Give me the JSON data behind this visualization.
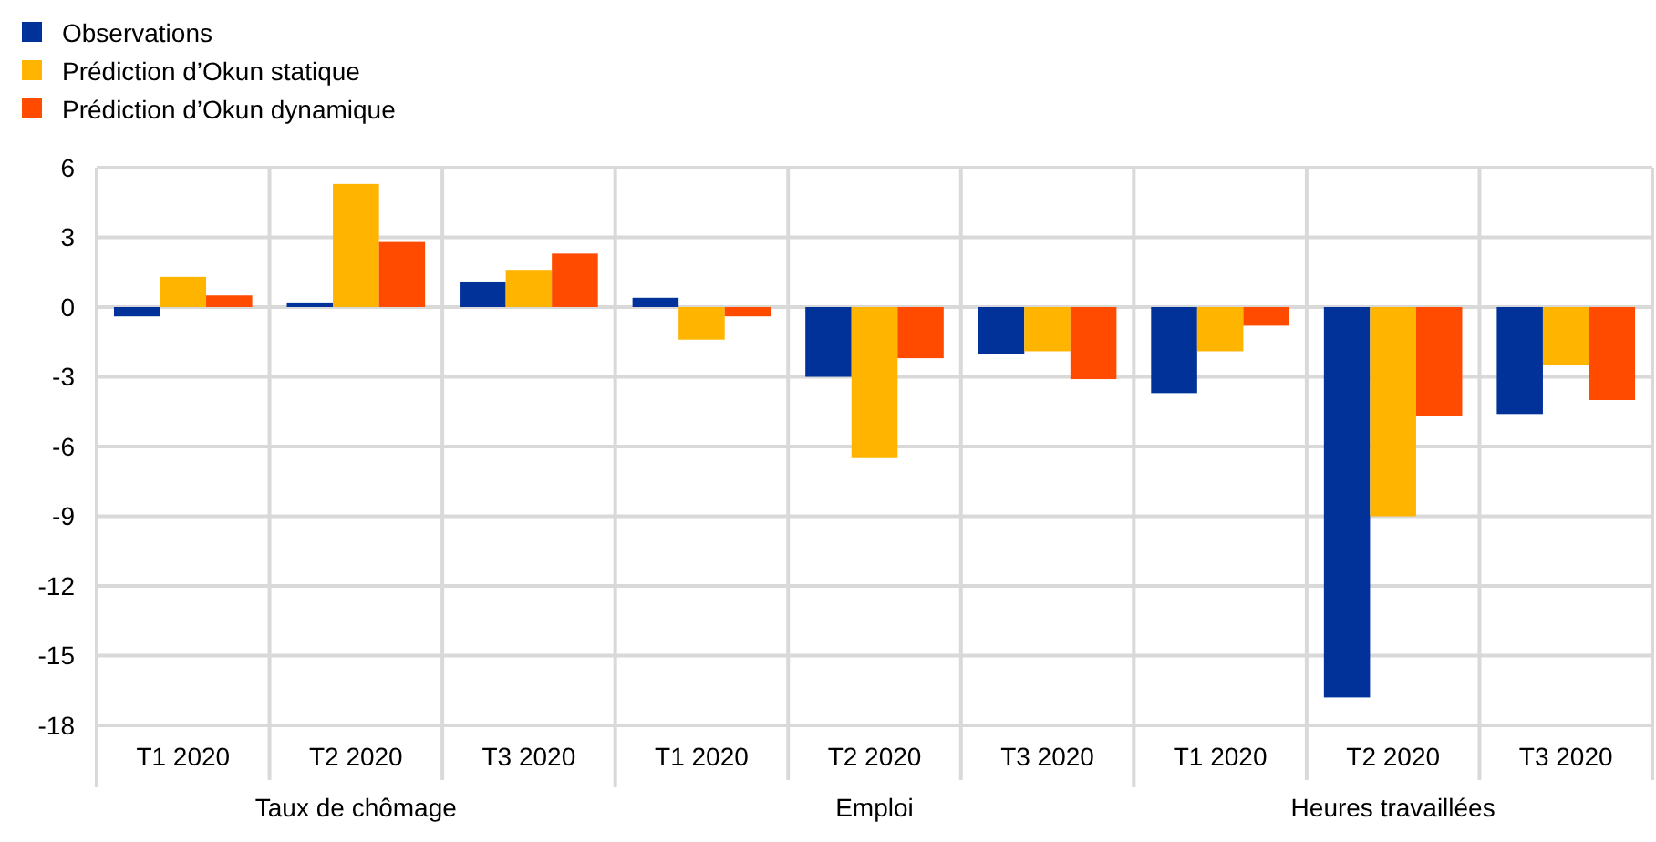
{
  "chart_data": {
    "type": "bar",
    "categories": [
      "T1 2020",
      "T2 2020",
      "T3 2020",
      "T1 2020",
      "T2 2020",
      "T3 2020",
      "T1 2020",
      "T2 2020",
      "T3 2020"
    ],
    "series": [
      {
        "name": "Observations",
        "color": "#003299",
        "values": [
          -0.4,
          0.2,
          1.1,
          0.4,
          -3.0,
          -2.0,
          -3.7,
          -16.8,
          -4.6
        ]
      },
      {
        "name": "Prédiction d’Okun statique",
        "color": "#ffb400",
        "values": [
          1.3,
          5.3,
          1.6,
          -1.4,
          -6.5,
          -1.9,
          -1.9,
          -9.0,
          -2.5
        ]
      },
      {
        "name": "Prédiction d’Okun dynamique",
        "color": "#ff4b00",
        "values": [
          0.5,
          2.8,
          2.3,
          -0.4,
          -2.2,
          -3.1,
          -0.8,
          -4.7,
          -4.0
        ]
      }
    ],
    "annotations": [
      "Taux de chômage",
      "Emploi",
      "Heures travaillées"
    ],
    "ylim": [
      -18,
      6
    ],
    "yticks": [
      -18,
      -15,
      -12,
      -9,
      -6,
      -3,
      0,
      3,
      6
    ],
    "grid": true,
    "legend": "top left"
  }
}
